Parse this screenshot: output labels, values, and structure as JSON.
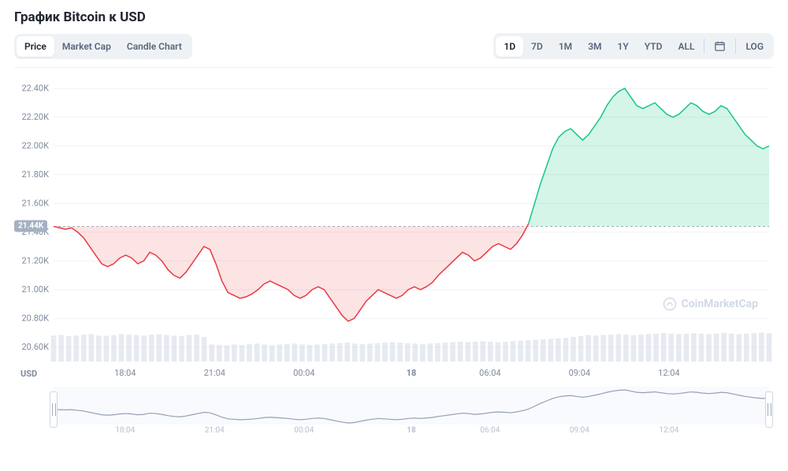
{
  "title": "График Bitcoin к USD",
  "tabs_left": [
    {
      "key": "price",
      "label": "Price",
      "active": true
    },
    {
      "key": "mcap",
      "label": "Market Cap",
      "active": false
    },
    {
      "key": "candle",
      "label": "Candle Chart",
      "active": false
    }
  ],
  "tabs_right": [
    {
      "key": "1d",
      "label": "1D",
      "active": true
    },
    {
      "key": "7d",
      "label": "7D",
      "active": false
    },
    {
      "key": "1m",
      "label": "1M",
      "active": false
    },
    {
      "key": "3m",
      "label": "3M",
      "active": false
    },
    {
      "key": "1y",
      "label": "1Y",
      "active": false
    },
    {
      "key": "ytd",
      "label": "YTD",
      "active": false
    },
    {
      "key": "all",
      "label": "ALL",
      "active": false
    }
  ],
  "log_label": "LOG",
  "watermark": "CoinMarketCap",
  "yaxis_unit": "USD",
  "chart": {
    "type": "line-area",
    "background_color": "#ffffff",
    "grid_color": "#f0f2f5",
    "axis_text_color": "#808a9d",
    "axis_font_size": 11,
    "up_line_color": "#16c784",
    "up_fill_color": "rgba(22,199,132,0.18)",
    "down_line_color": "#ea3943",
    "down_fill_color": "rgba(234,57,67,0.14)",
    "line_width": 1.5,
    "reference_value": 21.44,
    "reference_label": "21.44K",
    "reference_line_color": "#a6b0c3",
    "reference_line_dash": "3 3",
    "ylim": [
      20.5,
      22.5
    ],
    "yticks": [
      20.6,
      20.8,
      21.0,
      21.2,
      21.4,
      21.6,
      21.8,
      22.0,
      22.2,
      22.4
    ],
    "ytick_labels": [
      "20.60K",
      "20.80K",
      "21.00K",
      "21.20K",
      "21.40K",
      "21.60K",
      "21.80K",
      "22.00K",
      "22.20K",
      "22.40K"
    ],
    "xtick_positions": [
      0.1,
      0.225,
      0.35,
      0.47,
      0.5,
      0.61,
      0.735,
      0.86
    ],
    "xtick_labels": [
      "18:04",
      "21:04",
      "00:04",
      "",
      "18",
      "06:04",
      "09:04",
      "12:04"
    ],
    "volume_bar_color": "#cfd6e4",
    "volume_series": [
      0.55,
      0.56,
      0.54,
      0.55,
      0.57,
      0.58,
      0.55,
      0.54,
      0.56,
      0.58,
      0.57,
      0.56,
      0.55,
      0.57,
      0.58,
      0.56,
      0.55,
      0.54,
      0.56,
      0.57,
      0.52,
      0.36,
      0.35,
      0.34,
      0.36,
      0.35,
      0.37,
      0.38,
      0.36,
      0.35,
      0.36,
      0.37,
      0.38,
      0.36,
      0.35,
      0.36,
      0.37,
      0.38,
      0.39,
      0.4,
      0.38,
      0.37,
      0.38,
      0.39,
      0.4,
      0.41,
      0.4,
      0.39,
      0.38,
      0.37,
      0.38,
      0.39,
      0.4,
      0.41,
      0.42,
      0.41,
      0.42,
      0.43,
      0.42,
      0.41,
      0.42,
      0.43,
      0.44,
      0.45,
      0.46,
      0.47,
      0.48,
      0.49,
      0.5,
      0.52,
      0.54,
      0.56,
      0.55,
      0.56,
      0.57,
      0.58,
      0.57,
      0.56,
      0.57,
      0.58,
      0.59,
      0.6,
      0.59,
      0.58,
      0.59,
      0.6,
      0.59,
      0.58,
      0.59,
      0.6,
      0.59,
      0.58,
      0.59,
      0.6,
      0.61,
      0.6
    ],
    "price_series": [
      21.44,
      21.43,
      21.42,
      21.43,
      21.4,
      21.36,
      21.3,
      21.24,
      21.18,
      21.16,
      21.18,
      21.22,
      21.24,
      21.22,
      21.18,
      21.2,
      21.26,
      21.24,
      21.2,
      21.14,
      21.1,
      21.08,
      21.12,
      21.18,
      21.24,
      21.3,
      21.28,
      21.18,
      21.06,
      20.98,
      20.96,
      20.94,
      20.95,
      20.97,
      21.0,
      21.04,
      21.06,
      21.04,
      21.02,
      21.0,
      20.96,
      20.94,
      20.96,
      21.0,
      21.02,
      21.0,
      20.94,
      20.88,
      20.82,
      20.78,
      20.8,
      20.86,
      20.92,
      20.96,
      21.0,
      20.98,
      20.96,
      20.94,
      20.96,
      21.0,
      21.02,
      21.0,
      21.02,
      21.05,
      21.1,
      21.14,
      21.18,
      21.22,
      21.26,
      21.24,
      21.2,
      21.22,
      21.26,
      21.3,
      21.32,
      21.3,
      21.28,
      21.32,
      21.38,
      21.46,
      21.6,
      21.74,
      21.86,
      21.98,
      22.06,
      22.1,
      22.12,
      22.08,
      22.04,
      22.08,
      22.14,
      22.2,
      22.28,
      22.34,
      22.38,
      22.4,
      22.34,
      22.28,
      22.26,
      22.28,
      22.3,
      22.26,
      22.22,
      22.2,
      22.22,
      22.26,
      22.3,
      22.28,
      22.24,
      22.22,
      22.24,
      22.28,
      22.26,
      22.2,
      22.14,
      22.08,
      22.04,
      22.0,
      21.98,
      22.0
    ]
  },
  "brush": {
    "background_color": "#f8fafd",
    "line_color": "#96a0b5",
    "axis_text_color": "#b8c0d0"
  }
}
